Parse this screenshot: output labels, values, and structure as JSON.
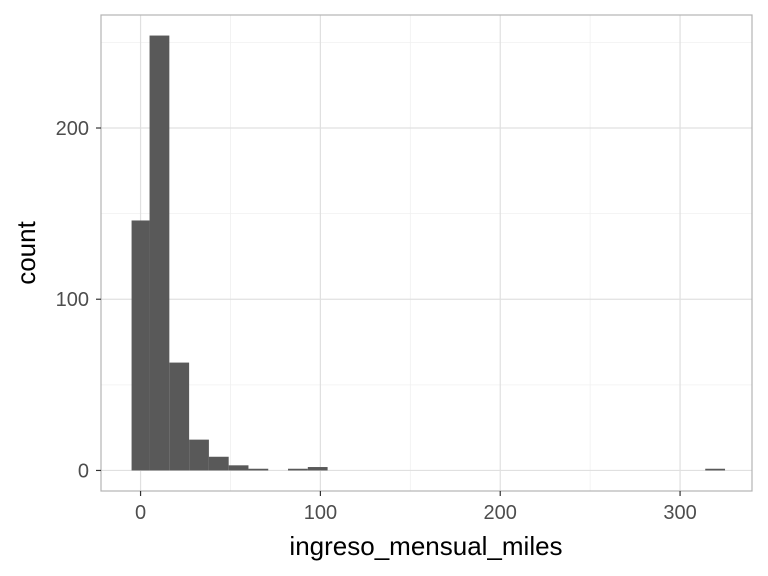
{
  "chart_data": {
    "type": "bar",
    "subtype": "histogram",
    "title": "",
    "xlabel": "ingreso_mensual_miles",
    "ylabel": "count",
    "xlim": [
      -22,
      340
    ],
    "ylim": [
      -12,
      266
    ],
    "x_ticks": [
      0,
      100,
      200,
      300
    ],
    "y_ticks": [
      0,
      100,
      200
    ],
    "grid": true,
    "colors": {
      "bar": "#595959",
      "panel_border": "#b3b3b3",
      "grid_major": "#e0e0e0",
      "grid_minor": "#f0f0f0"
    },
    "bins": [
      {
        "x0": -5,
        "x1": 5,
        "count": 146
      },
      {
        "x0": 5,
        "x1": 16,
        "count": 254
      },
      {
        "x0": 16,
        "x1": 27,
        "count": 63
      },
      {
        "x0": 27,
        "x1": 38,
        "count": 18
      },
      {
        "x0": 38,
        "x1": 49,
        "count": 8
      },
      {
        "x0": 49,
        "x1": 60,
        "count": 3
      },
      {
        "x0": 60,
        "x1": 71,
        "count": 1
      },
      {
        "x0": 82,
        "x1": 93,
        "count": 1
      },
      {
        "x0": 93,
        "x1": 104,
        "count": 2
      },
      {
        "x0": 314,
        "x1": 325,
        "count": 1
      }
    ]
  }
}
